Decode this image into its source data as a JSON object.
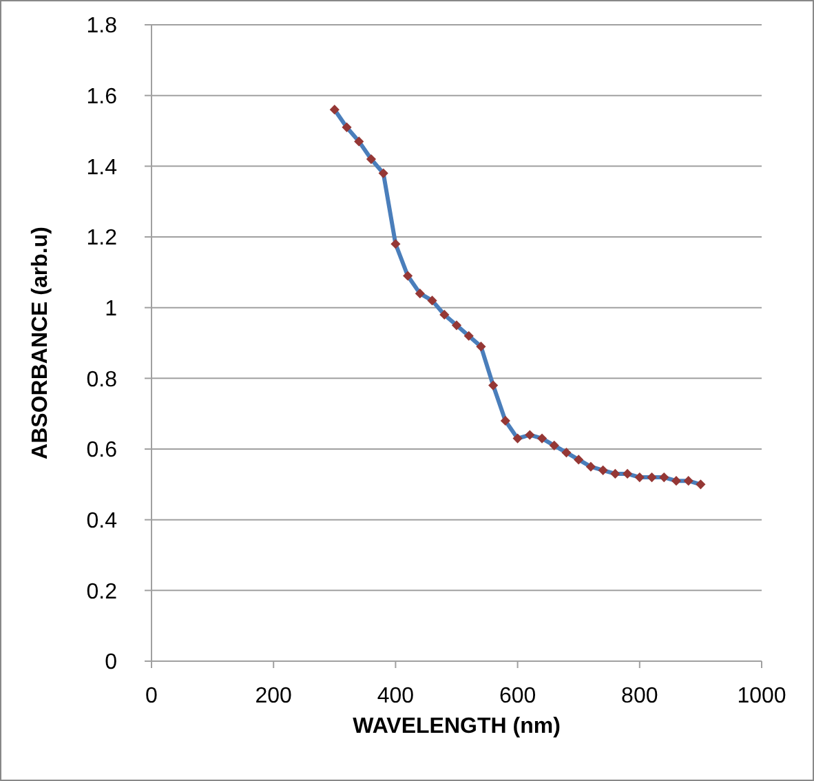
{
  "chart_data": {
    "type": "line",
    "xlabel": "WAVELENGTH (nm)",
    "ylabel": "ABSORBANCE (arb.u)",
    "x": [
      300,
      320,
      340,
      360,
      380,
      400,
      420,
      440,
      460,
      480,
      500,
      520,
      540,
      560,
      580,
      600,
      620,
      640,
      660,
      680,
      700,
      720,
      740,
      760,
      780,
      800,
      820,
      840,
      860,
      880,
      900
    ],
    "series": [
      {
        "color": "#4a7ebb",
        "marker": "none",
        "values": [
          1.56,
          1.51,
          1.47,
          1.42,
          1.38,
          1.18,
          1.09,
          1.04,
          1.02,
          0.98,
          0.95,
          0.92,
          0.89,
          0.78,
          0.68,
          0.63,
          0.64,
          0.63,
          0.61,
          0.59,
          0.57,
          0.55,
          0.54,
          0.53,
          0.53,
          0.52,
          0.52,
          0.52,
          0.51,
          0.51,
          0.5
        ]
      },
      {
        "type": "scatter",
        "color": "#953735",
        "values": [
          1.56,
          1.51,
          1.47,
          1.42,
          1.38,
          1.18,
          1.09,
          1.04,
          1.02,
          0.98,
          0.95,
          0.92,
          0.89,
          0.78,
          0.68,
          0.63,
          0.64,
          0.63,
          0.61,
          0.59,
          0.57,
          0.55,
          0.54,
          0.53,
          0.53,
          0.52,
          0.52,
          0.52,
          0.51,
          0.51,
          0.5
        ]
      }
    ],
    "marker": "diamond",
    "line_style": "solid",
    "xlim": [
      0,
      1000
    ],
    "xticks": [
      0,
      200,
      400,
      600,
      800,
      1000
    ],
    "ylim": [
      0,
      1.8
    ],
    "yticks": [
      0,
      0.2,
      0.4,
      0.6,
      0.8,
      1,
      1.2,
      1.4,
      1.6,
      1.8
    ],
    "grid": "y",
    "legend": false
  }
}
